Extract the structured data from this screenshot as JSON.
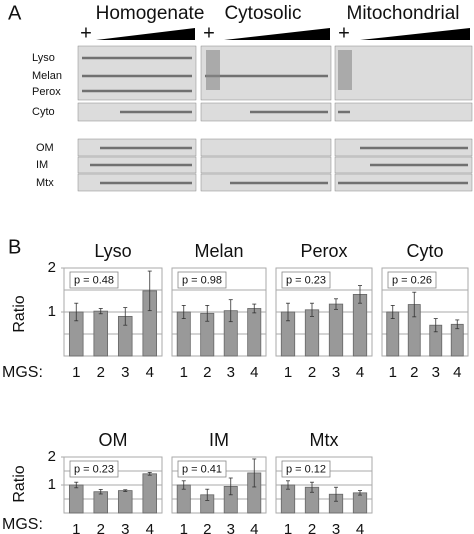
{
  "panel_a": {
    "label": "A",
    "columns": [
      "Homogenate",
      "Cytosolic",
      "Mitochondrial"
    ],
    "plus": "+",
    "rows": [
      "Lyso",
      "Melan",
      "Perox",
      "Cyto",
      "OM",
      "IM",
      "Mtx"
    ]
  },
  "panel_b": {
    "label": "B",
    "y_label": "Ratio",
    "x_label": "MGS:"
  },
  "chart_data": [
    {
      "type": "bar",
      "title": "Lyso",
      "annotation": "p = 0.48",
      "categories": [
        "1",
        "2",
        "3",
        "4"
      ],
      "values": [
        1.0,
        1.02,
        0.9,
        1.48
      ],
      "errors": [
        0.2,
        0.06,
        0.2,
        0.45
      ],
      "color": "#999999",
      "ylim": [
        0,
        2
      ],
      "yticks": [
        1,
        2
      ],
      "gridlines": [
        0.5,
        1,
        1.5
      ]
    },
    {
      "type": "bar",
      "title": "Melan",
      "annotation": "p = 0.98",
      "categories": [
        "1",
        "2",
        "3",
        "4"
      ],
      "values": [
        1.0,
        0.97,
        1.03,
        1.08
      ],
      "errors": [
        0.15,
        0.18,
        0.25,
        0.1
      ],
      "color": "#999999",
      "ylim": [
        0,
        2
      ],
      "gridlines": [
        0.5,
        1,
        1.5
      ]
    },
    {
      "type": "bar",
      "title": "Perox",
      "annotation": "p = 0.23",
      "categories": [
        "1",
        "2",
        "3",
        "4"
      ],
      "values": [
        1.0,
        1.05,
        1.18,
        1.4
      ],
      "errors": [
        0.2,
        0.15,
        0.12,
        0.2
      ],
      "color": "#999999",
      "ylim": [
        0,
        2
      ],
      "gridlines": [
        0.5,
        1,
        1.5
      ]
    },
    {
      "type": "bar",
      "title": "Cyto",
      "annotation": "p = 0.26",
      "categories": [
        "1",
        "2",
        "3",
        "4"
      ],
      "values": [
        1.0,
        1.17,
        0.7,
        0.72
      ],
      "errors": [
        0.15,
        0.28,
        0.15,
        0.1
      ],
      "color": "#999999",
      "ylim": [
        0,
        2
      ],
      "gridlines": [
        0.5,
        1,
        1.5
      ]
    },
    {
      "type": "bar",
      "title": "OM",
      "annotation": "p = 0.23",
      "categories": [
        "1",
        "2",
        "3",
        "4"
      ],
      "values": [
        1.0,
        0.76,
        0.8,
        1.4
      ],
      "errors": [
        0.1,
        0.08,
        0.03,
        0.05
      ],
      "color": "#999999",
      "ylim": [
        0,
        2
      ],
      "yticks": [
        1,
        2
      ],
      "gridlines": [
        0.5,
        1,
        1.5
      ]
    },
    {
      "type": "bar",
      "title": "IM",
      "annotation": "p = 0.41",
      "categories": [
        "1",
        "2",
        "3",
        "4"
      ],
      "values": [
        1.0,
        0.65,
        0.95,
        1.43
      ],
      "errors": [
        0.15,
        0.2,
        0.3,
        0.5
      ],
      "color": "#999999",
      "ylim": [
        0,
        2
      ],
      "gridlines": [
        0.5,
        1,
        1.5
      ]
    },
    {
      "type": "bar",
      "title": "Mtx",
      "annotation": "p = 0.12",
      "categories": [
        "1",
        "2",
        "3",
        "4"
      ],
      "values": [
        1.0,
        0.92,
        0.67,
        0.72
      ],
      "errors": [
        0.15,
        0.18,
        0.25,
        0.08
      ],
      "color": "#999999",
      "ylim": [
        0,
        2
      ],
      "gridlines": [
        0.5,
        1,
        1.5
      ]
    }
  ]
}
